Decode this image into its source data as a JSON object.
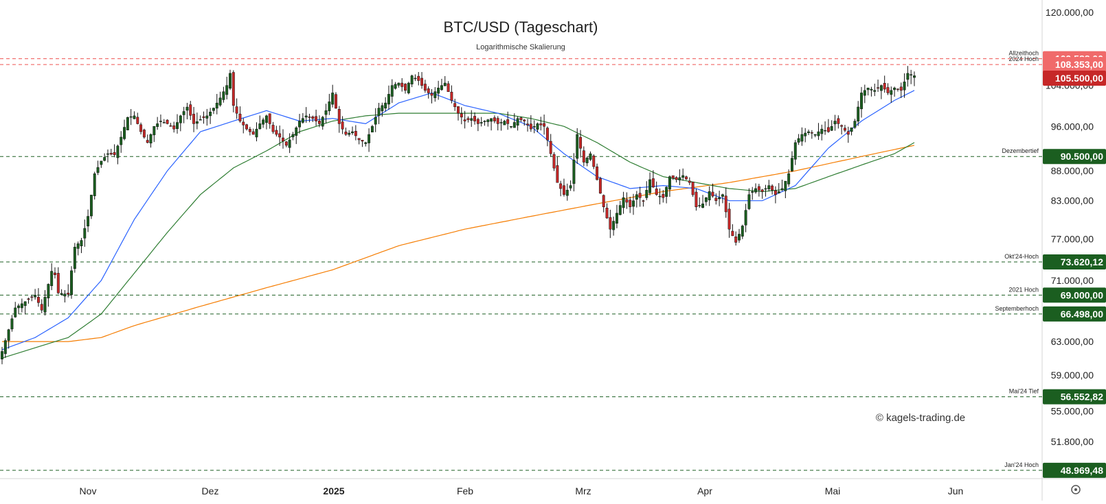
{
  "chart_data": {
    "type": "candlestick",
    "title": "BTC/USD (Tageschart)",
    "subtitle": "Logarithmische Skalierung",
    "watermark": "© kagels-trading.de",
    "scale": "log",
    "ylim": [
      48500,
      125000
    ],
    "y_ticks": [
      {
        "value": 120000,
        "label": "120.000,00"
      },
      {
        "value": 104000,
        "label": "104.000,00"
      },
      {
        "value": 96000,
        "label": "96.000,00"
      },
      {
        "value": 88000,
        "label": "88.000,00"
      },
      {
        "value": 83000,
        "label": "83.000,00"
      },
      {
        "value": 77000,
        "label": "77.000,00"
      },
      {
        "value": 71000,
        "label": "71.000,00"
      },
      {
        "value": 63000,
        "label": "63.000,00"
      },
      {
        "value": 59000,
        "label": "59.000,00"
      },
      {
        "value": 55000,
        "label": "55.000,00"
      },
      {
        "value": 51800,
        "label": "51.800,00"
      }
    ],
    "x_ticks": [
      {
        "label": "Nov",
        "bold": false
      },
      {
        "label": "Dez",
        "bold": false
      },
      {
        "label": "2025",
        "bold": true
      },
      {
        "label": "Feb",
        "bold": false
      },
      {
        "label": "Mrz",
        "bold": false
      },
      {
        "label": "Apr",
        "bold": false
      },
      {
        "label": "Mai",
        "bold": false
      },
      {
        "label": "Jun",
        "bold": false
      }
    ],
    "levels": [
      {
        "name": "Allzeithoch",
        "value": 109588,
        "badge": "109.588,00",
        "color": "#ef5350",
        "line_color": "#ef5350"
      },
      {
        "name": "2024 Hoch",
        "value": 108353,
        "badge": "108.353,00",
        "color": "#ef5350",
        "line_color": "#ef5350"
      },
      {
        "name": "Dezembertief",
        "value": 90500,
        "badge": "90.500,00",
        "color": "#1b5e20",
        "line_color": "#1b5e20"
      },
      {
        "name": "Okt'24-Hoch",
        "value": 73620.12,
        "badge": "73.620,12",
        "color": "#1b5e20",
        "line_color": "#1b5e20"
      },
      {
        "name": "2021 Hoch",
        "value": 69000,
        "badge": "69.000,00",
        "color": "#1b5e20",
        "line_color": "#1b5e20"
      },
      {
        "name": "Septemberhoch",
        "value": 66498,
        "badge": "66.498,00",
        "color": "#1b5e20",
        "line_color": "#1b5e20"
      },
      {
        "name": "Mai'24 Tief",
        "value": 56552.82,
        "badge": "56.552,82",
        "color": "#1b5e20",
        "line_color": "#1b5e20"
      },
      {
        "name": "Jan'24 Hoch",
        "value": 48969.48,
        "badge": "48.969,48",
        "color": "#1b5e20",
        "line_color": "#1b5e20"
      }
    ],
    "current_price": {
      "value": 105500,
      "badge": "105.500,00",
      "color": "#c62828"
    },
    "colors": {
      "up": "#1b5e20",
      "down": "#c62828",
      "ma_short": "#2962ff",
      "ma_mid": "#2e7d32",
      "ma_long": "#f57c00"
    },
    "price_path": [
      [
        0,
        61800
      ],
      [
        4,
        67300
      ],
      [
        8,
        68400
      ],
      [
        10,
        69000
      ],
      [
        12,
        67000
      ],
      [
        15,
        72300
      ],
      [
        16,
        71800
      ],
      [
        17,
        69300
      ],
      [
        20,
        69100
      ],
      [
        22,
        75800
      ],
      [
        24,
        76800
      ],
      [
        26,
        80500
      ],
      [
        28,
        87500
      ],
      [
        30,
        89700
      ],
      [
        32,
        91000
      ],
      [
        34,
        90800
      ],
      [
        36,
        94000
      ],
      [
        38,
        97700
      ],
      [
        40,
        98000
      ],
      [
        42,
        95000
      ],
      [
        44,
        93000
      ],
      [
        46,
        96000
      ],
      [
        48,
        97000
      ],
      [
        50,
        96500
      ],
      [
        52,
        95500
      ],
      [
        54,
        98000
      ],
      [
        56,
        99700
      ],
      [
        58,
        96500
      ],
      [
        60,
        97300
      ],
      [
        62,
        98000
      ],
      [
        64,
        99500
      ],
      [
        66,
        101500
      ],
      [
        68,
        104000
      ],
      [
        69,
        106500
      ],
      [
        70,
        100000
      ],
      [
        72,
        97000
      ],
      [
        74,
        95500
      ],
      [
        76,
        94500
      ],
      [
        78,
        96500
      ],
      [
        80,
        98000
      ],
      [
        82,
        95000
      ],
      [
        84,
        94000
      ],
      [
        86,
        92500
      ],
      [
        88,
        94500
      ],
      [
        90,
        97000
      ],
      [
        92,
        98000
      ],
      [
        94,
        97500
      ],
      [
        96,
        96500
      ],
      [
        98,
        99000
      ],
      [
        100,
        102500
      ],
      [
        102,
        96500
      ],
      [
        104,
        94500
      ],
      [
        106,
        95000
      ],
      [
        108,
        93500
      ],
      [
        110,
        93000
      ],
      [
        112,
        96000
      ],
      [
        114,
        99500
      ],
      [
        116,
        100500
      ],
      [
        118,
        104000
      ],
      [
        120,
        104500
      ],
      [
        122,
        103000
      ],
      [
        124,
        106000
      ],
      [
        126,
        105000
      ],
      [
        128,
        103000
      ],
      [
        130,
        102000
      ],
      [
        132,
        103500
      ],
      [
        134,
        104500
      ],
      [
        136,
        101000
      ],
      [
        138,
        98500
      ],
      [
        140,
        97000
      ],
      [
        142,
        97500
      ],
      [
        144,
        96500
      ],
      [
        146,
        97000
      ],
      [
        148,
        97500
      ],
      [
        150,
        96500
      ],
      [
        152,
        97000
      ],
      [
        154,
        96000
      ],
      [
        156,
        97500
      ],
      [
        158,
        97000
      ],
      [
        160,
        95500
      ],
      [
        162,
        96500
      ],
      [
        164,
        96000
      ],
      [
        166,
        91000
      ],
      [
        168,
        86000
      ],
      [
        170,
        84000
      ],
      [
        172,
        85500
      ],
      [
        174,
        94500
      ],
      [
        176,
        89500
      ],
      [
        178,
        91000
      ],
      [
        180,
        86500
      ],
      [
        182,
        82000
      ],
      [
        184,
        78500
      ],
      [
        186,
        81000
      ],
      [
        188,
        83500
      ],
      [
        190,
        82000
      ],
      [
        192,
        84000
      ],
      [
        194,
        83000
      ],
      [
        196,
        86500
      ],
      [
        198,
        84000
      ],
      [
        200,
        83500
      ],
      [
        202,
        87000
      ],
      [
        204,
        86500
      ],
      [
        206,
        87200
      ],
      [
        208,
        86000
      ],
      [
        210,
        82000
      ],
      [
        212,
        82500
      ],
      [
        214,
        84500
      ],
      [
        216,
        83000
      ],
      [
        218,
        84000
      ],
      [
        220,
        78500
      ],
      [
        222,
        76500
      ],
      [
        224,
        79000
      ],
      [
        226,
        84000
      ],
      [
        228,
        85000
      ],
      [
        230,
        84500
      ],
      [
        232,
        85500
      ],
      [
        234,
        84000
      ],
      [
        236,
        85000
      ],
      [
        238,
        87500
      ],
      [
        240,
        93000
      ],
      [
        242,
        94500
      ],
      [
        244,
        95000
      ],
      [
        246,
        94500
      ],
      [
        248,
        95500
      ],
      [
        250,
        95000
      ],
      [
        252,
        97000
      ],
      [
        254,
        96000
      ],
      [
        256,
        94500
      ],
      [
        258,
        97000
      ],
      [
        260,
        102500
      ],
      [
        262,
        103500
      ],
      [
        264,
        103000
      ],
      [
        266,
        104000
      ],
      [
        268,
        102500
      ],
      [
        270,
        103500
      ],
      [
        272,
        103000
      ],
      [
        274,
        106500
      ],
      [
        276,
        106000
      ]
    ],
    "ma_short_path": [
      [
        0,
        62000
      ],
      [
        10,
        63500
      ],
      [
        20,
        66000
      ],
      [
        30,
        71000
      ],
      [
        40,
        80000
      ],
      [
        50,
        88000
      ],
      [
        60,
        95000
      ],
      [
        70,
        97000
      ],
      [
        80,
        99000
      ],
      [
        90,
        97000
      ],
      [
        100,
        97500
      ],
      [
        110,
        96500
      ],
      [
        120,
        100500
      ],
      [
        130,
        102500
      ],
      [
        140,
        100000
      ],
      [
        150,
        98500
      ],
      [
        160,
        96000
      ],
      [
        170,
        91000
      ],
      [
        180,
        87000
      ],
      [
        190,
        85000
      ],
      [
        200,
        85500
      ],
      [
        210,
        85000
      ],
      [
        220,
        83000
      ],
      [
        230,
        83000
      ],
      [
        240,
        85500
      ],
      [
        250,
        92000
      ],
      [
        260,
        97000
      ],
      [
        270,
        101000
      ],
      [
        276,
        103000
      ]
    ],
    "ma_mid_path": [
      [
        0,
        61000
      ],
      [
        20,
        63500
      ],
      [
        30,
        66500
      ],
      [
        50,
        78000
      ],
      [
        60,
        84000
      ],
      [
        70,
        88500
      ],
      [
        80,
        91500
      ],
      [
        90,
        95000
      ],
      [
        100,
        97000
      ],
      [
        110,
        98000
      ],
      [
        120,
        98500
      ],
      [
        140,
        98500
      ],
      [
        150,
        98500
      ],
      [
        160,
        97500
      ],
      [
        170,
        96000
      ],
      [
        180,
        93000
      ],
      [
        190,
        89500
      ],
      [
        200,
        87000
      ],
      [
        210,
        86000
      ],
      [
        220,
        85000
      ],
      [
        230,
        84500
      ],
      [
        240,
        85000
      ],
      [
        250,
        87000
      ],
      [
        260,
        89000
      ],
      [
        270,
        91000
      ],
      [
        276,
        93000
      ]
    ],
    "ma_long_path": [
      [
        0,
        63000
      ],
      [
        20,
        63000
      ],
      [
        30,
        63500
      ],
      [
        40,
        65000
      ],
      [
        60,
        67500
      ],
      [
        80,
        70000
      ],
      [
        100,
        72500
      ],
      [
        120,
        76000
      ],
      [
        140,
        78500
      ],
      [
        160,
        80500
      ],
      [
        180,
        82500
      ],
      [
        200,
        84500
      ],
      [
        220,
        86000
      ],
      [
        240,
        88000
      ],
      [
        260,
        90500
      ],
      [
        276,
        92500
      ]
    ]
  }
}
